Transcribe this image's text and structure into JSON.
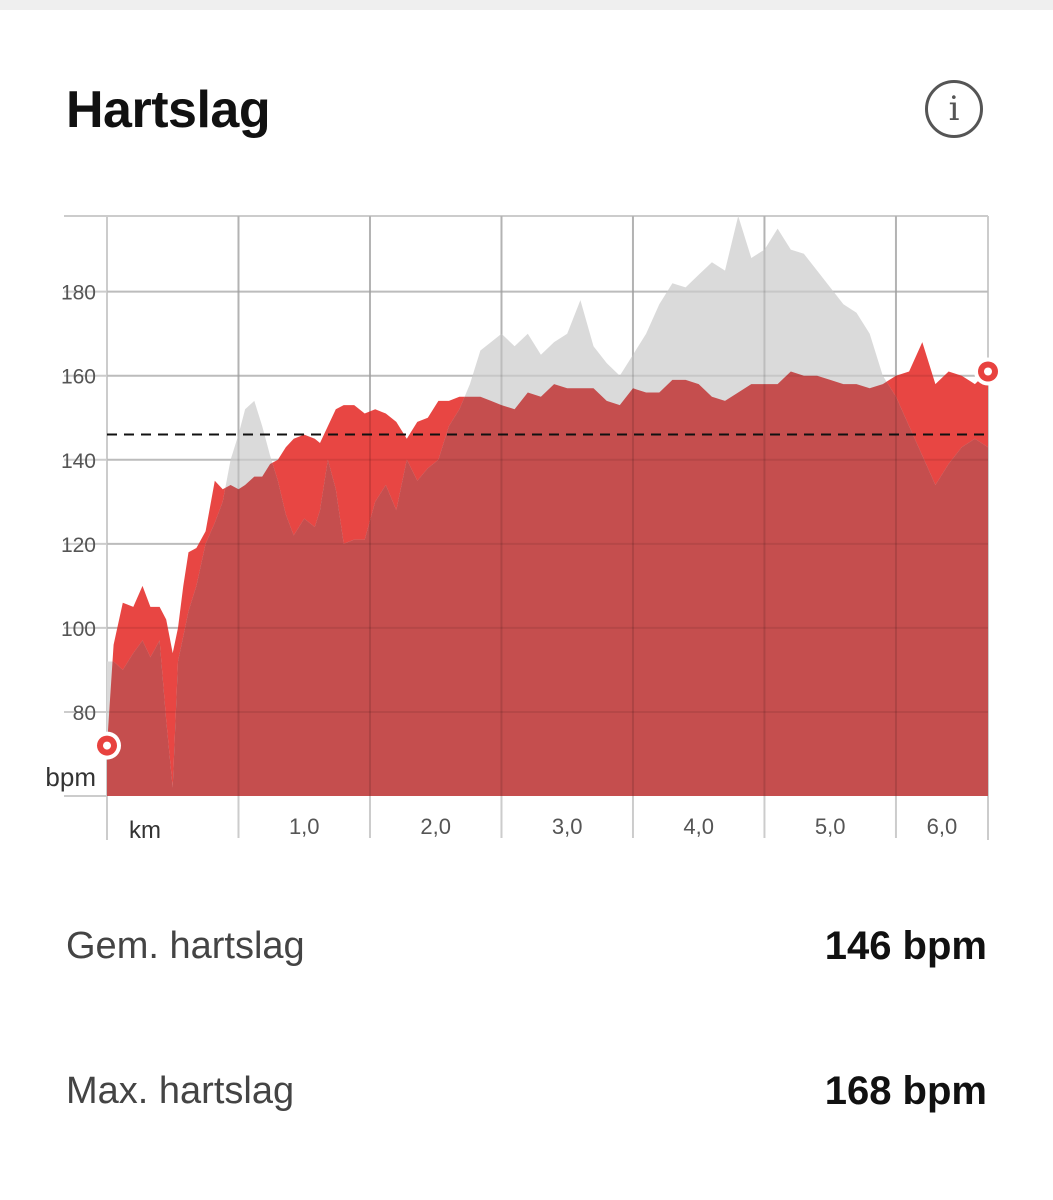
{
  "header": {
    "title": "Hartslag",
    "info_icon": "info-icon"
  },
  "colors": {
    "accent": "#e8423f",
    "avg_area": "#c54e4e",
    "comparison_area": "#d8d8d8",
    "grid": "#cccccc"
  },
  "stats": [
    {
      "label": "Gem. hartslag",
      "value": "146 bpm"
    },
    {
      "label": "Max. hartslag",
      "value": "168 bpm"
    }
  ],
  "chart_data": {
    "type": "area",
    "xlabel": "km",
    "ylabel": "bpm",
    "xlim": [
      0,
      6.7
    ],
    "ylim": [
      60,
      198
    ],
    "x_ticks": [
      1,
      2,
      3,
      4,
      5,
      6
    ],
    "x_tick_labels": [
      "1,0",
      "2,0",
      "3,0",
      "4,0",
      "5,0",
      "6,0"
    ],
    "y_ticks": [
      80,
      100,
      120,
      140,
      160,
      180
    ],
    "y_tick_labels": [
      "80",
      "100",
      "120",
      "140",
      "160",
      "180"
    ],
    "average_line": 146,
    "grid": true,
    "series": [
      {
        "x": [
          0,
          0.05,
          0.12,
          0.2,
          0.27,
          0.33,
          0.4,
          0.45,
          0.5,
          0.54,
          0.58,
          0.62,
          0.68,
          0.75,
          0.82,
          0.88,
          0.94,
          1.0,
          1.05,
          1.12,
          1.18,
          1.24,
          1.3,
          1.36,
          1.42,
          1.5,
          1.58,
          1.62,
          1.68,
          1.74,
          1.8,
          1.88,
          1.96,
          2.04,
          2.12,
          2.2,
          2.28,
          2.36,
          2.44,
          2.52,
          2.6,
          2.68,
          2.76,
          2.84,
          2.92,
          3.0,
          3.1,
          3.2,
          3.3,
          3.4,
          3.5,
          3.6,
          3.7,
          3.8,
          3.9,
          4.0,
          4.1,
          4.2,
          4.3,
          4.4,
          4.5,
          4.6,
          4.7,
          4.8,
          4.9,
          5.0,
          5.1,
          5.2,
          5.3,
          5.4,
          5.5,
          5.6,
          5.7,
          5.8,
          5.9,
          6.0,
          6.1,
          6.2,
          6.3,
          6.4,
          6.5,
          6.6,
          6.7
        ],
        "values": [
          72,
          96,
          106,
          105,
          110,
          105,
          105,
          102,
          94,
          100,
          110,
          118,
          119,
          123,
          135,
          133,
          134,
          133,
          134,
          136,
          136,
          139,
          140,
          143,
          145,
          146,
          145,
          144,
          148,
          152,
          153,
          153,
          151,
          152,
          151,
          149,
          145,
          149,
          150,
          154,
          154,
          155,
          155,
          155,
          154,
          153,
          152,
          156,
          155,
          158,
          157,
          157,
          157,
          154,
          153,
          157,
          156,
          156,
          159,
          159,
          158,
          155,
          154,
          156,
          158,
          158,
          158,
          161,
          160,
          160,
          159,
          158,
          158,
          157,
          158,
          160,
          161,
          168,
          158,
          161,
          160,
          158,
          161
        ]
      },
      {
        "x": [
          0,
          0.05,
          0.12,
          0.2,
          0.27,
          0.33,
          0.4,
          0.45,
          0.5,
          0.54,
          0.58,
          0.62,
          0.68,
          0.75,
          0.82,
          0.88,
          0.94,
          1.0,
          1.05,
          1.12,
          1.18,
          1.24,
          1.3,
          1.36,
          1.42,
          1.5,
          1.58,
          1.62,
          1.68,
          1.74,
          1.8,
          1.88,
          1.96,
          2.04,
          2.12,
          2.2,
          2.28,
          2.36,
          2.44,
          2.52,
          2.6,
          2.68,
          2.76,
          2.84,
          2.92,
          3.0,
          3.1,
          3.2,
          3.3,
          3.4,
          3.5,
          3.6,
          3.7,
          3.8,
          3.9,
          4.0,
          4.1,
          4.2,
          4.3,
          4.4,
          4.5,
          4.6,
          4.7,
          4.8,
          4.9,
          5.0,
          5.1,
          5.2,
          5.3,
          5.4,
          5.5,
          5.6,
          5.7,
          5.8,
          5.9,
          6.0,
          6.1,
          6.2,
          6.3,
          6.4,
          6.5,
          6.6,
          6.7
        ],
        "values": [
          92,
          92,
          90,
          94,
          97,
          93,
          97,
          78,
          62,
          92,
          98,
          104,
          110,
          120,
          125,
          130,
          140,
          146,
          152,
          154,
          148,
          141,
          135,
          127,
          122,
          126,
          124,
          128,
          140,
          133,
          120,
          121,
          121,
          130,
          134,
          128,
          140,
          135,
          138,
          140,
          148,
          152,
          158,
          166,
          168,
          170,
          167,
          170,
          165,
          168,
          170,
          178,
          167,
          163,
          160,
          165,
          170,
          177,
          182,
          181,
          184,
          187,
          185,
          198,
          188,
          190,
          195,
          190,
          189,
          185,
          181,
          177,
          175,
          170,
          160,
          155,
          148,
          141,
          134,
          139,
          143,
          145,
          143
        ]
      }
    ],
    "markers": [
      {
        "x": 0,
        "y": 72
      },
      {
        "x": 6.7,
        "y": 161
      }
    ]
  }
}
